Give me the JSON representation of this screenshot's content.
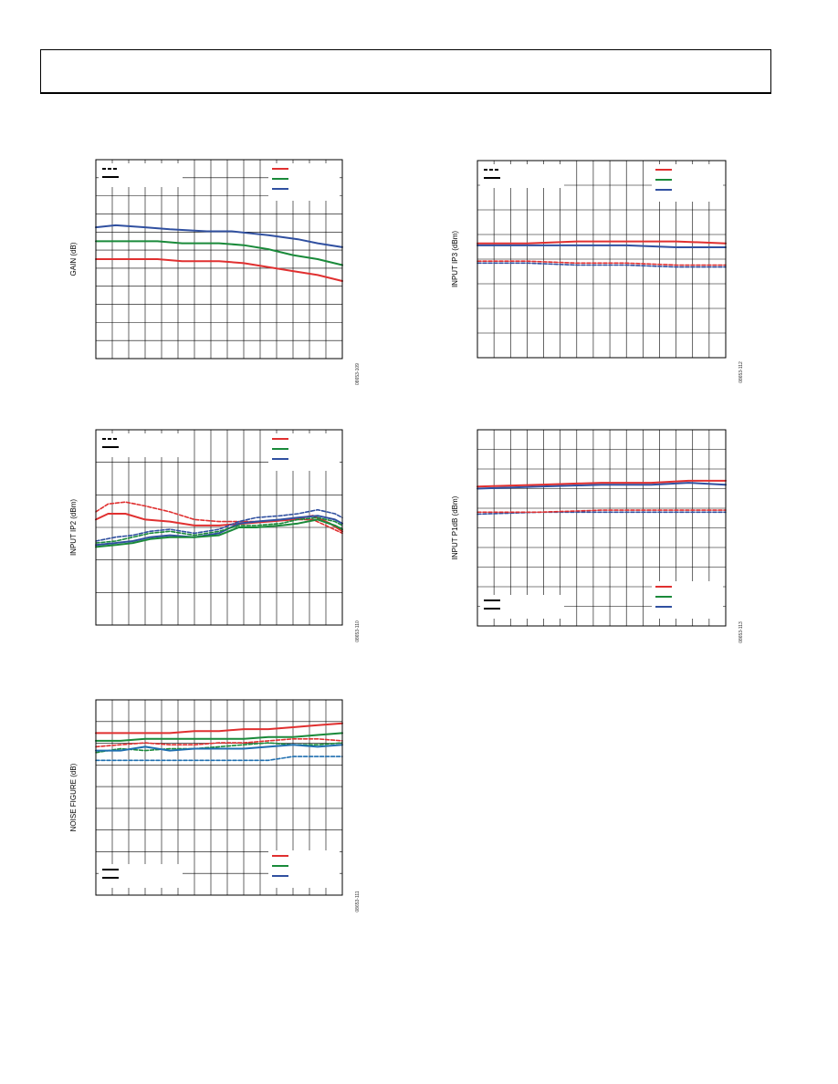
{
  "charts": [
    {
      "id": "gain",
      "ylabel": "GAIN (dB)",
      "figure_id": "08653-109",
      "legend_style": {
        "corner": "top-left",
        "items": [
          "dashed",
          "solid"
        ]
      },
      "legend_color": {
        "corner": "top-right",
        "items": [
          "red",
          "green",
          "blue"
        ]
      },
      "series": [
        {
          "color": "#3050a0",
          "style": "solid",
          "points": [
            [
              0,
              0.34
            ],
            [
              0.08,
              0.33
            ],
            [
              0.2,
              0.34
            ],
            [
              0.3,
              0.35
            ],
            [
              0.45,
              0.36
            ],
            [
              0.55,
              0.36
            ],
            [
              0.7,
              0.38
            ],
            [
              0.82,
              0.4
            ],
            [
              0.9,
              0.42
            ],
            [
              1,
              0.44
            ]
          ]
        },
        {
          "color": "#1a8a3a",
          "style": "solid",
          "points": [
            [
              0,
              0.41
            ],
            [
              0.1,
              0.41
            ],
            [
              0.25,
              0.41
            ],
            [
              0.35,
              0.42
            ],
            [
              0.5,
              0.42
            ],
            [
              0.6,
              0.43
            ],
            [
              0.7,
              0.45
            ],
            [
              0.8,
              0.48
            ],
            [
              0.9,
              0.5
            ],
            [
              1,
              0.53
            ]
          ]
        },
        {
          "color": "#e03030",
          "style": "solid",
          "points": [
            [
              0,
              0.5
            ],
            [
              0.1,
              0.5
            ],
            [
              0.25,
              0.5
            ],
            [
              0.35,
              0.51
            ],
            [
              0.5,
              0.51
            ],
            [
              0.6,
              0.52
            ],
            [
              0.7,
              0.54
            ],
            [
              0.8,
              0.56
            ],
            [
              0.9,
              0.58
            ],
            [
              1,
              0.61
            ]
          ]
        }
      ]
    },
    {
      "id": "input-ip2",
      "ylabel": "INPUT IP2 (dBm)",
      "figure_id": "08653-110",
      "legend_style": {
        "corner": "top-left",
        "items": [
          "dashed",
          "solid"
        ]
      },
      "legend_color": {
        "corner": "top-right",
        "items": [
          "red",
          "green",
          "blue"
        ]
      },
      "series": [
        {
          "color": "#e03030",
          "style": "dashed",
          "points": [
            [
              0,
              0.42
            ],
            [
              0.05,
              0.38
            ],
            [
              0.12,
              0.37
            ],
            [
              0.2,
              0.39
            ],
            [
              0.3,
              0.42
            ],
            [
              0.4,
              0.46
            ],
            [
              0.5,
              0.47
            ],
            [
              0.6,
              0.47
            ],
            [
              0.7,
              0.47
            ],
            [
              0.8,
              0.46
            ],
            [
              0.88,
              0.46
            ],
            [
              0.95,
              0.5
            ],
            [
              1,
              0.53
            ]
          ]
        },
        {
          "color": "#e03030",
          "style": "solid",
          "points": [
            [
              0,
              0.46
            ],
            [
              0.05,
              0.43
            ],
            [
              0.12,
              0.43
            ],
            [
              0.2,
              0.46
            ],
            [
              0.3,
              0.47
            ],
            [
              0.4,
              0.49
            ],
            [
              0.5,
              0.49
            ],
            [
              0.6,
              0.48
            ],
            [
              0.7,
              0.47
            ],
            [
              0.8,
              0.46
            ],
            [
              0.88,
              0.44
            ],
            [
              0.95,
              0.48
            ],
            [
              1,
              0.52
            ]
          ]
        },
        {
          "color": "#3050a0",
          "style": "dashed",
          "points": [
            [
              0,
              0.57
            ],
            [
              0.08,
              0.55
            ],
            [
              0.15,
              0.54
            ],
            [
              0.22,
              0.52
            ],
            [
              0.3,
              0.51
            ],
            [
              0.4,
              0.53
            ],
            [
              0.5,
              0.51
            ],
            [
              0.58,
              0.47
            ],
            [
              0.65,
              0.45
            ],
            [
              0.75,
              0.44
            ],
            [
              0.82,
              0.43
            ],
            [
              0.9,
              0.41
            ],
            [
              0.97,
              0.43
            ],
            [
              1,
              0.45
            ]
          ]
        },
        {
          "color": "#3050a0",
          "style": "solid",
          "points": [
            [
              0,
              0.59
            ],
            [
              0.08,
              0.58
            ],
            [
              0.15,
              0.57
            ],
            [
              0.22,
              0.55
            ],
            [
              0.3,
              0.54
            ],
            [
              0.4,
              0.55
            ],
            [
              0.5,
              0.53
            ],
            [
              0.58,
              0.48
            ],
            [
              0.65,
              0.47
            ],
            [
              0.75,
              0.46
            ],
            [
              0.82,
              0.45
            ],
            [
              0.9,
              0.44
            ],
            [
              0.97,
              0.46
            ],
            [
              1,
              0.48
            ]
          ]
        },
        {
          "color": "#1a8a3a",
          "style": "dashed",
          "points": [
            [
              0,
              0.58
            ],
            [
              0.08,
              0.57
            ],
            [
              0.15,
              0.55
            ],
            [
              0.22,
              0.53
            ],
            [
              0.3,
              0.52
            ],
            [
              0.4,
              0.54
            ],
            [
              0.5,
              0.52
            ],
            [
              0.58,
              0.49
            ],
            [
              0.65,
              0.49
            ],
            [
              0.75,
              0.48
            ],
            [
              0.82,
              0.46
            ],
            [
              0.9,
              0.45
            ],
            [
              0.97,
              0.47
            ],
            [
              1,
              0.49
            ]
          ]
        },
        {
          "color": "#1a8a3a",
          "style": "solid",
          "points": [
            [
              0,
              0.6
            ],
            [
              0.08,
              0.59
            ],
            [
              0.15,
              0.58
            ],
            [
              0.22,
              0.56
            ],
            [
              0.3,
              0.55
            ],
            [
              0.4,
              0.55
            ],
            [
              0.5,
              0.54
            ],
            [
              0.58,
              0.5
            ],
            [
              0.65,
              0.5
            ],
            [
              0.75,
              0.49
            ],
            [
              0.82,
              0.48
            ],
            [
              0.9,
              0.46
            ],
            [
              0.97,
              0.49
            ],
            [
              1,
              0.51
            ]
          ]
        }
      ]
    },
    {
      "id": "noise-figure",
      "ylabel": "NOISE FIGURE (dB)",
      "figure_id": "08653-111",
      "legend_style": {
        "corner": "bottom-left",
        "items": [
          "solid",
          "solid"
        ]
      },
      "legend_color": {
        "corner": "bottom-right",
        "items": [
          "red",
          "green",
          "blue"
        ]
      },
      "series": [
        {
          "color": "#e03030",
          "style": "solid",
          "points": [
            [
              0,
              0.17
            ],
            [
              0.1,
              0.17
            ],
            [
              0.2,
              0.17
            ],
            [
              0.3,
              0.17
            ],
            [
              0.4,
              0.16
            ],
            [
              0.5,
              0.16
            ],
            [
              0.6,
              0.15
            ],
            [
              0.7,
              0.15
            ],
            [
              0.8,
              0.14
            ],
            [
              0.9,
              0.13
            ],
            [
              1,
              0.12
            ]
          ]
        },
        {
          "color": "#1a8a3a",
          "style": "solid",
          "points": [
            [
              0,
              0.21
            ],
            [
              0.1,
              0.21
            ],
            [
              0.2,
              0.2
            ],
            [
              0.3,
              0.2
            ],
            [
              0.4,
              0.2
            ],
            [
              0.5,
              0.2
            ],
            [
              0.6,
              0.2
            ],
            [
              0.7,
              0.19
            ],
            [
              0.8,
              0.19
            ],
            [
              0.9,
              0.18
            ],
            [
              1,
              0.17
            ]
          ]
        },
        {
          "color": "#e03030",
          "style": "dashed",
          "points": [
            [
              0,
              0.24
            ],
            [
              0.1,
              0.23
            ],
            [
              0.2,
              0.22
            ],
            [
              0.3,
              0.23
            ],
            [
              0.4,
              0.23
            ],
            [
              0.5,
              0.22
            ],
            [
              0.6,
              0.22
            ],
            [
              0.7,
              0.21
            ],
            [
              0.8,
              0.2
            ],
            [
              0.9,
              0.2
            ],
            [
              1,
              0.21
            ]
          ]
        },
        {
          "color": "#1a8a3a",
          "style": "dashed",
          "points": [
            [
              0,
              0.27
            ],
            [
              0.1,
              0.25
            ],
            [
              0.2,
              0.26
            ],
            [
              0.3,
              0.25
            ],
            [
              0.4,
              0.25
            ],
            [
              0.5,
              0.24
            ],
            [
              0.6,
              0.23
            ],
            [
              0.7,
              0.22
            ],
            [
              0.8,
              0.23
            ],
            [
              0.9,
              0.23
            ],
            [
              1,
              0.22
            ]
          ]
        },
        {
          "color": "#1f6fb0",
          "style": "solid",
          "points": [
            [
              0,
              0.26
            ],
            [
              0.1,
              0.26
            ],
            [
              0.2,
              0.24
            ],
            [
              0.3,
              0.26
            ],
            [
              0.4,
              0.25
            ],
            [
              0.5,
              0.25
            ],
            [
              0.6,
              0.25
            ],
            [
              0.7,
              0.24
            ],
            [
              0.8,
              0.23
            ],
            [
              0.9,
              0.24
            ],
            [
              1,
              0.23
            ]
          ]
        },
        {
          "color": "#1f6fb0",
          "style": "dashed",
          "points": [
            [
              0,
              0.31
            ],
            [
              0.1,
              0.31
            ],
            [
              0.2,
              0.31
            ],
            [
              0.3,
              0.31
            ],
            [
              0.4,
              0.31
            ],
            [
              0.5,
              0.31
            ],
            [
              0.6,
              0.31
            ],
            [
              0.7,
              0.31
            ],
            [
              0.8,
              0.29
            ],
            [
              0.9,
              0.29
            ],
            [
              1,
              0.29
            ]
          ]
        }
      ]
    },
    {
      "id": "input-ip3",
      "ylabel": "INPUT IP3 (dBm)",
      "figure_id": "08653-112",
      "legend_style": {
        "corner": "top-left",
        "items": [
          "dashed",
          "solid"
        ]
      },
      "legend_color": {
        "corner": "top-right",
        "items": [
          "red",
          "green",
          "blue"
        ]
      },
      "series": [
        {
          "color": "#e03030",
          "style": "solid",
          "points": [
            [
              0,
              0.42
            ],
            [
              0.2,
              0.42
            ],
            [
              0.4,
              0.41
            ],
            [
              0.6,
              0.41
            ],
            [
              0.8,
              0.41
            ],
            [
              1,
              0.42
            ]
          ]
        },
        {
          "color": "#3050a0",
          "style": "solid",
          "points": [
            [
              0,
              0.43
            ],
            [
              0.2,
              0.43
            ],
            [
              0.4,
              0.43
            ],
            [
              0.6,
              0.43
            ],
            [
              0.8,
              0.44
            ],
            [
              1,
              0.44
            ]
          ]
        },
        {
          "color": "#e03030",
          "style": "dashed",
          "points": [
            [
              0,
              0.51
            ],
            [
              0.2,
              0.51
            ],
            [
              0.4,
              0.52
            ],
            [
              0.6,
              0.52
            ],
            [
              0.8,
              0.53
            ],
            [
              1,
              0.53
            ]
          ]
        },
        {
          "color": "#3050a0",
          "style": "dashed",
          "points": [
            [
              0,
              0.52
            ],
            [
              0.2,
              0.52
            ],
            [
              0.4,
              0.53
            ],
            [
              0.6,
              0.53
            ],
            [
              0.8,
              0.54
            ],
            [
              1,
              0.54
            ]
          ]
        }
      ]
    },
    {
      "id": "input-p1db",
      "ylabel": "INPUT P1dB (dBm)",
      "figure_id": "08653-113",
      "legend_style": {
        "corner": "bottom-left",
        "items": [
          "solid",
          "solid"
        ]
      },
      "legend_color": {
        "corner": "bottom-right",
        "items": [
          "red",
          "green",
          "blue"
        ]
      },
      "series": [
        {
          "color": "#3050a0",
          "style": "solid",
          "points": [
            [
              0,
              0.3
            ],
            [
              0.25,
              0.29
            ],
            [
              0.5,
              0.28
            ],
            [
              0.7,
              0.28
            ],
            [
              0.85,
              0.27
            ],
            [
              1,
              0.28
            ]
          ]
        },
        {
          "color": "#e03030",
          "style": "solid",
          "points": [
            [
              0,
              0.29
            ],
            [
              0.25,
              0.28
            ],
            [
              0.5,
              0.27
            ],
            [
              0.7,
              0.27
            ],
            [
              0.85,
              0.26
            ],
            [
              1,
              0.26
            ]
          ]
        },
        {
          "color": "#3050a0",
          "style": "dashed",
          "points": [
            [
              0,
              0.43
            ],
            [
              0.25,
              0.42
            ],
            [
              0.5,
              0.42
            ],
            [
              0.75,
              0.42
            ],
            [
              1,
              0.42
            ]
          ]
        },
        {
          "color": "#e03030",
          "style": "dashed",
          "points": [
            [
              0,
              0.42
            ],
            [
              0.25,
              0.42
            ],
            [
              0.5,
              0.41
            ],
            [
              0.75,
              0.41
            ],
            [
              1,
              0.41
            ]
          ]
        }
      ]
    }
  ],
  "colors": {
    "red": "#e03030",
    "green": "#1a8a3a",
    "blue": "#3050a0",
    "blue_alt": "#1f6fb0"
  }
}
